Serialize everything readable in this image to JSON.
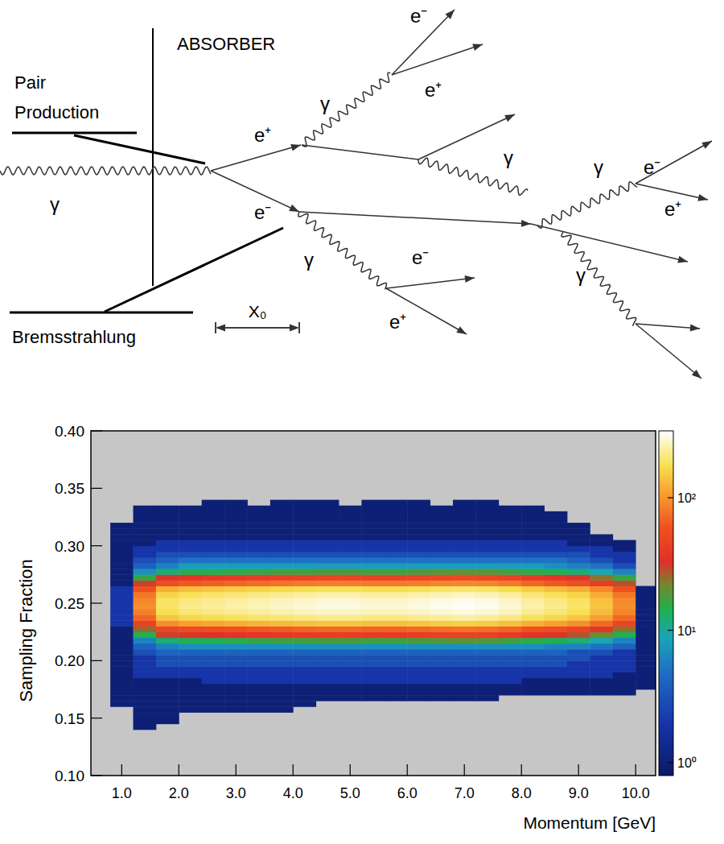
{
  "diagram": {
    "absorber_label": "ABSORBER",
    "pair_production_label": [
      "Pair",
      "Production"
    ],
    "bremsstrahlung_label": "Bremsstrahlung",
    "length_label": "X₀",
    "particles": [
      "γ",
      "e⁺",
      "e⁻",
      "γ",
      "e⁻",
      "e⁺",
      "γ",
      "γ",
      "e⁻",
      "e⁺",
      "γ",
      "e⁻",
      "e⁺",
      "γ"
    ]
  },
  "chart_data": {
    "type": "heatmap",
    "x_label": "Momentum [GeV]",
    "y_label": "Sampling Fraction",
    "xlim": [
      0.46,
      10.35
    ],
    "ylim": [
      0.1,
      0.4
    ],
    "xticks": [
      {
        "value": 1,
        "label": "1.0"
      },
      {
        "value": 2,
        "label": "2.0"
      },
      {
        "value": 3,
        "label": "3.0"
      },
      {
        "value": 4,
        "label": "4.0"
      },
      {
        "value": 5,
        "label": "5.0"
      },
      {
        "value": 6,
        "label": "6.0"
      },
      {
        "value": 7,
        "label": "7.0"
      },
      {
        "value": 8,
        "label": "8.0"
      },
      {
        "value": 9,
        "label": "9.0"
      },
      {
        "value": 10,
        "label": "10.0"
      }
    ],
    "yticks": [
      {
        "value": 0.1,
        "label": "0.10"
      },
      0.15,
      {
        "value": 0.2,
        "label": "0.20"
      },
      0.25,
      {
        "value": 0.3,
        "label": "0.30"
      },
      0.35,
      {
        "value": 0.4,
        "label": "0.40"
      }
    ],
    "grid": false,
    "x_bins": [
      0.8,
      1.2,
      1.6,
      2.0,
      2.4,
      2.8,
      3.2,
      3.6,
      4.0,
      4.4,
      4.8,
      5.2,
      5.6,
      6.0,
      6.4,
      6.8,
      7.2,
      7.6,
      8.0,
      8.4,
      8.8,
      9.2,
      9.6,
      10.0,
      10.4
    ],
    "y_bins": [
      0.14,
      0.145,
      0.15,
      0.155,
      0.16,
      0.165,
      0.17,
      0.175,
      0.18,
      0.185,
      0.19,
      0.195,
      0.2,
      0.205,
      0.21,
      0.215,
      0.22,
      0.225,
      0.23,
      0.235,
      0.24,
      0.245,
      0.25,
      0.255,
      0.26,
      0.265,
      0.27,
      0.275,
      0.28,
      0.285,
      0.29,
      0.295,
      0.3,
      0.305,
      0.31,
      0.315,
      0.32,
      0.325,
      0.33,
      0.335,
      0.34
    ],
    "cells": [
      [
        0,
        1,
        0,
        0,
        0,
        0,
        0,
        0,
        0,
        0,
        0,
        0,
        0,
        0,
        0,
        0,
        0,
        0,
        0,
        0,
        0,
        0,
        0,
        0
      ],
      [
        0,
        1,
        1,
        0,
        0,
        0,
        0,
        0,
        0,
        0,
        0,
        0,
        0,
        0,
        0,
        0,
        0,
        0,
        0,
        0,
        0,
        0,
        0,
        0
      ],
      [
        0,
        1,
        1,
        0,
        0,
        0,
        0,
        0,
        0,
        0,
        0,
        0,
        0,
        0,
        0,
        0,
        0,
        0,
        0,
        0,
        0,
        0,
        0,
        0
      ],
      [
        0,
        1,
        1,
        1,
        1,
        1,
        1,
        1,
        0,
        0,
        0,
        0,
        0,
        0,
        0,
        0,
        0,
        0,
        0,
        0,
        0,
        0,
        0,
        0
      ],
      [
        1,
        1,
        1,
        1,
        1,
        1,
        1,
        1,
        1,
        0,
        0,
        0,
        0,
        0,
        0,
        0,
        0,
        0,
        0,
        0,
        0,
        0,
        0,
        0
      ],
      [
        1,
        1,
        1,
        1,
        1,
        1,
        1,
        1,
        1,
        1,
        1,
        1,
        1,
        1,
        1,
        1,
        1,
        0,
        0,
        0,
        0,
        0,
        0,
        0
      ],
      [
        1,
        1,
        1,
        1,
        1,
        1,
        1,
        1,
        1,
        1,
        1,
        1,
        1,
        1,
        1,
        1,
        1,
        1,
        1,
        1,
        1,
        1,
        1,
        0
      ],
      [
        1,
        1,
        1,
        1,
        1,
        1,
        1,
        1,
        1,
        1,
        1,
        1,
        1,
        1,
        1,
        1,
        1,
        1,
        1,
        1,
        1,
        1,
        1,
        1
      ],
      [
        1,
        1,
        1,
        1,
        2,
        2,
        2,
        2,
        2,
        2,
        2,
        2,
        2,
        2,
        2,
        2,
        2,
        2,
        1,
        1,
        1,
        1,
        1,
        1
      ],
      [
        1,
        2,
        2,
        2,
        2,
        2,
        2,
        2,
        2,
        2,
        2,
        2,
        2,
        2,
        2,
        2,
        2,
        2,
        2,
        2,
        2,
        2,
        1,
        1
      ],
      [
        1,
        2,
        2,
        2,
        2,
        2,
        2,
        2,
        2,
        2,
        2,
        2,
        2,
        2,
        2,
        2,
        2,
        2,
        2,
        2,
        2,
        2,
        2,
        1
      ],
      [
        1,
        2,
        3,
        3,
        3,
        3,
        3,
        3,
        3,
        3,
        3,
        3,
        3,
        3,
        3,
        3,
        3,
        3,
        3,
        3,
        2,
        2,
        2,
        1
      ],
      [
        1,
        2,
        3,
        3,
        3,
        3,
        3,
        3,
        3,
        3,
        3,
        3,
        3,
        3,
        3,
        3,
        3,
        3,
        3,
        3,
        3,
        2,
        2,
        1
      ],
      [
        1,
        3,
        4,
        4,
        4,
        4,
        4,
        4,
        4,
        4,
        4,
        4,
        4,
        4,
        4,
        4,
        4,
        4,
        4,
        4,
        3,
        3,
        2,
        1
      ],
      [
        1,
        4,
        6,
        7,
        7,
        7,
        7,
        7,
        7,
        7,
        7,
        7,
        7,
        7,
        7,
        7,
        7,
        7,
        7,
        6,
        6,
        5,
        4,
        1
      ],
      [
        1,
        6,
        12,
        14,
        14,
        15,
        16,
        17,
        17,
        18,
        18,
        17,
        17,
        18,
        19,
        20,
        19,
        17,
        15,
        14,
        12,
        9,
        6,
        1
      ],
      [
        1,
        14,
        30,
        32,
        33,
        35,
        37,
        39,
        40,
        42,
        42,
        40,
        40,
        42,
        44,
        46,
        44,
        40,
        35,
        32,
        28,
        21,
        14,
        1
      ],
      [
        1,
        25,
        50,
        54,
        57,
        60,
        63,
        66,
        69,
        72,
        72,
        69,
        69,
        72,
        75,
        78,
        75,
        69,
        60,
        54,
        48,
        36,
        24,
        1
      ],
      [
        2,
        45,
        95,
        108,
        114,
        120,
        126,
        132,
        138,
        144,
        144,
        138,
        138,
        144,
        150,
        156,
        150,
        138,
        120,
        108,
        96,
        72,
        48,
        1
      ],
      [
        2,
        70,
        145,
        162,
        171,
        180,
        189,
        198,
        207,
        216,
        216,
        207,
        207,
        216,
        225,
        234,
        225,
        207,
        180,
        162,
        144,
        108,
        72,
        1
      ],
      [
        2,
        85,
        175,
        198,
        209,
        220,
        231,
        242,
        253,
        264,
        264,
        253,
        253,
        264,
        275,
        286,
        275,
        253,
        220,
        198,
        176,
        132,
        88,
        1
      ],
      [
        2,
        95,
        190,
        216,
        228,
        240,
        252,
        264,
        276,
        288,
        288,
        276,
        276,
        288,
        300,
        312,
        300,
        276,
        240,
        216,
        192,
        144,
        96,
        1
      ],
      [
        2,
        90,
        185,
        207,
        219,
        230,
        242,
        253,
        265,
        276,
        276,
        265,
        265,
        276,
        288,
        299,
        288,
        265,
        230,
        207,
        184,
        138,
        92,
        1
      ],
      [
        2,
        80,
        160,
        180,
        190,
        200,
        210,
        220,
        230,
        240,
        240,
        230,
        230,
        240,
        250,
        260,
        250,
        230,
        200,
        180,
        160,
        120,
        80,
        1
      ],
      [
        2,
        60,
        120,
        135,
        143,
        150,
        158,
        165,
        173,
        180,
        180,
        173,
        173,
        180,
        188,
        195,
        188,
        173,
        150,
        135,
        120,
        90,
        60,
        1
      ],
      [
        1,
        30,
        55,
        63,
        67,
        70,
        74,
        77,
        81,
        84,
        84,
        81,
        81,
        84,
        88,
        91,
        88,
        81,
        70,
        63,
        56,
        42,
        28,
        0
      ],
      [
        1,
        16,
        32,
        36,
        38,
        40,
        42,
        44,
        46,
        48,
        48,
        46,
        46,
        48,
        50,
        52,
        50,
        46,
        40,
        36,
        32,
        24,
        16,
        0
      ],
      [
        1,
        7,
        12,
        14,
        14,
        15,
        16,
        17,
        17,
        18,
        18,
        17,
        17,
        18,
        19,
        20,
        19,
        17,
        15,
        14,
        12,
        9,
        6,
        0
      ],
      [
        1,
        4,
        6,
        8,
        8,
        8,
        8,
        8,
        8,
        8,
        8,
        8,
        8,
        8,
        8,
        8,
        8,
        8,
        8,
        7,
        6,
        5,
        3,
        0
      ],
      [
        1,
        3,
        4,
        5,
        5,
        5,
        5,
        5,
        5,
        5,
        5,
        5,
        5,
        5,
        5,
        5,
        5,
        5,
        5,
        5,
        4,
        3,
        2,
        0
      ],
      [
        1,
        2,
        3,
        3,
        3,
        3,
        3,
        3,
        3,
        3,
        3,
        3,
        3,
        3,
        3,
        3,
        3,
        3,
        3,
        3,
        3,
        2,
        2,
        0
      ],
      [
        1,
        2,
        2,
        2,
        2,
        2,
        2,
        2,
        2,
        2,
        2,
        2,
        2,
        2,
        2,
        2,
        2,
        2,
        2,
        2,
        2,
        2,
        1,
        0
      ],
      [
        1,
        1,
        2,
        2,
        2,
        2,
        2,
        2,
        2,
        2,
        2,
        2,
        2,
        2,
        2,
        2,
        2,
        2,
        2,
        2,
        1,
        1,
        1,
        0
      ],
      [
        1,
        1,
        1,
        1,
        1,
        1,
        1,
        1,
        1,
        1,
        1,
        1,
        1,
        1,
        1,
        1,
        1,
        1,
        1,
        1,
        1,
        1,
        0,
        0
      ],
      [
        1,
        1,
        1,
        1,
        1,
        1,
        1,
        1,
        1,
        1,
        1,
        1,
        1,
        1,
        1,
        1,
        1,
        1,
        1,
        1,
        1,
        0,
        0,
        0
      ],
      [
        1,
        1,
        1,
        1,
        1,
        1,
        1,
        1,
        1,
        1,
        1,
        1,
        1,
        1,
        1,
        1,
        1,
        1,
        1,
        1,
        1,
        0,
        0,
        0
      ],
      [
        0,
        1,
        1,
        1,
        1,
        1,
        1,
        1,
        1,
        1,
        1,
        1,
        1,
        1,
        1,
        1,
        1,
        1,
        1,
        1,
        0,
        0,
        0,
        0
      ],
      [
        0,
        1,
        1,
        1,
        1,
        1,
        1,
        1,
        1,
        1,
        1,
        1,
        1,
        1,
        1,
        1,
        1,
        1,
        1,
        1,
        0,
        0,
        0,
        0
      ],
      [
        0,
        1,
        1,
        1,
        1,
        1,
        1,
        1,
        1,
        1,
        1,
        1,
        1,
        1,
        1,
        1,
        1,
        1,
        1,
        0,
        0,
        0,
        0,
        0
      ],
      [
        0,
        0,
        0,
        0,
        1,
        1,
        0,
        1,
        1,
        1,
        0,
        1,
        1,
        1,
        0,
        1,
        1,
        0,
        0,
        0,
        0,
        0,
        0,
        0
      ]
    ],
    "color_range": [
      0.8,
      320
    ],
    "color_ticks": [
      {
        "value": 1,
        "label": "10⁰"
      },
      {
        "value": 10,
        "label": "10¹"
      },
      {
        "value": 100,
        "label": "10²"
      }
    ]
  }
}
